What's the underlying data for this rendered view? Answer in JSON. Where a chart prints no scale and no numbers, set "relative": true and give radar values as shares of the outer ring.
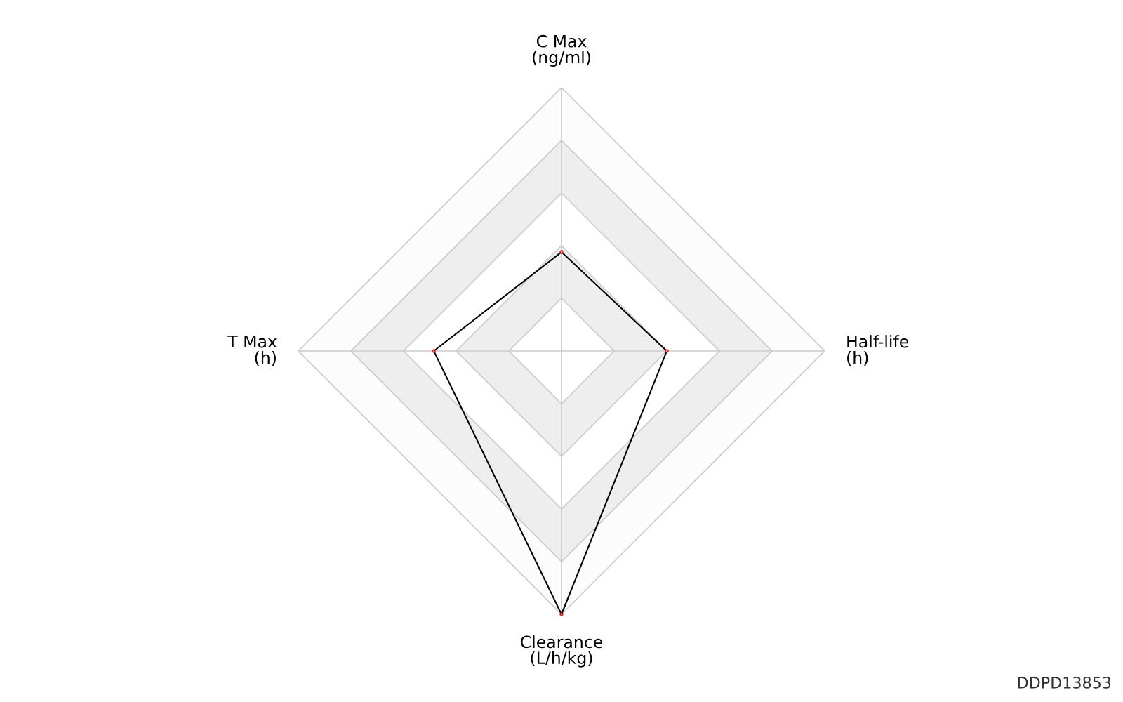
{
  "chart_data": {
    "type": "radar",
    "relative": true,
    "categories": [
      "C Max\n(ng/ml)",
      "Half-life\n(h)",
      "Clearance\n(L/h/kg)",
      "T Max\n(h)"
    ],
    "series": [
      {
        "color": "#000000",
        "values": [
          0.376,
          0.4,
          1.0,
          0.485
        ]
      }
    ],
    "marker": "circle",
    "line_style": "solid",
    "grid": true,
    "annotations": [
      "DDPD13853"
    ]
  }
}
